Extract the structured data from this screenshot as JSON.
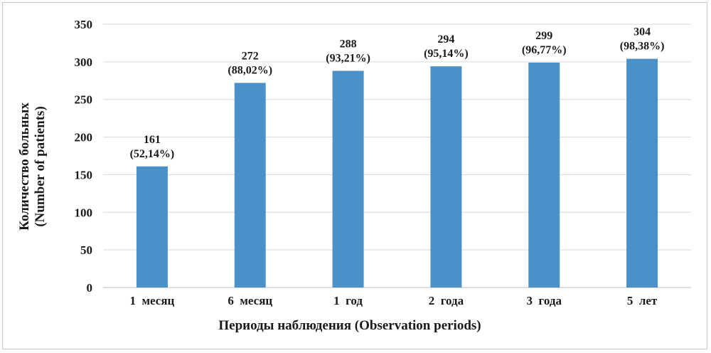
{
  "chart_data": {
    "type": "bar",
    "categories": [
      "1  месяц",
      "6  месяц",
      "1  год",
      "2  года",
      "3  года",
      "5  лет"
    ],
    "values": [
      161,
      272,
      288,
      294,
      299,
      304
    ],
    "data_labels": [
      {
        "count": "161",
        "percent": "(52,14%)"
      },
      {
        "count": "272",
        "percent": "(88,02%)"
      },
      {
        "count": "288",
        "percent": "(93,21%)"
      },
      {
        "count": "294",
        "percent": "(95,14%)"
      },
      {
        "count": "299",
        "percent": "(96,77%)"
      },
      {
        "count": "304",
        "percent": "(98,38%)"
      }
    ],
    "xlabel": "Периоды наблюдения (Observation periods)",
    "ylabel_line1": "Количество больных",
    "ylabel_line2": "(Number of patients)",
    "ylim": [
      0,
      350
    ],
    "yticks": [
      0,
      50,
      100,
      150,
      200,
      250,
      300,
      350
    ],
    "grid": true,
    "bar_color": "#4a90c9"
  }
}
